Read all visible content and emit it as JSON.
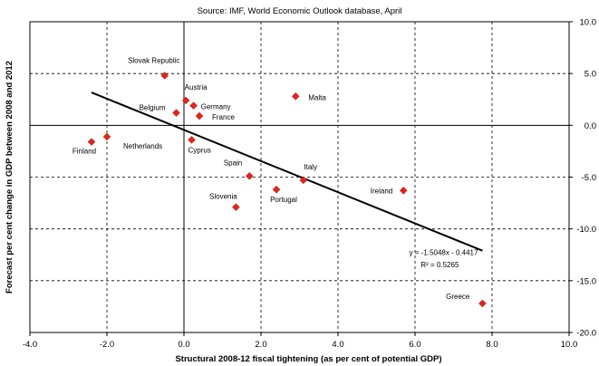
{
  "source": "Source: IMF, World Economic Outlook database, April",
  "chart_data": {
    "type": "scatter",
    "title": "",
    "xlabel": "Structural 2008-12 fiscal tightening (as per cent of potential GDP)",
    "ylabel": "Forecast per cent change in GDP between 2008 and 2012",
    "xlim": [
      -4.0,
      10.0
    ],
    "ylim": [
      -20.0,
      10.0
    ],
    "x_ticks": [
      "-4.0",
      "-2.0",
      "0.0",
      "2.0",
      "4.0",
      "6.0",
      "8.0",
      "10.0"
    ],
    "y_ticks": [
      "10.0",
      "5.0",
      "0.0",
      "-5.0",
      "-10.0",
      "-15.0",
      "-20.0"
    ],
    "grid": true,
    "points": [
      {
        "label": "Slovak Republic",
        "x": -0.5,
        "y": 4.8
      },
      {
        "label": "Austria",
        "x": 0.05,
        "y": 2.4
      },
      {
        "label": "Germany",
        "x": 0.25,
        "y": 1.9
      },
      {
        "label": "Belgium",
        "x": -0.2,
        "y": 1.2
      },
      {
        "label": "France",
        "x": 0.4,
        "y": 0.9
      },
      {
        "label": "Malta",
        "x": 2.9,
        "y": 2.8
      },
      {
        "label": "Netherlands",
        "x": -2.0,
        "y": -1.1
      },
      {
        "label": "Finland",
        "x": -2.4,
        "y": -1.6
      },
      {
        "label": "Cyprus",
        "x": 0.2,
        "y": -1.4
      },
      {
        "label": "Spain",
        "x": 1.7,
        "y": -4.9
      },
      {
        "label": "Italy",
        "x": 3.1,
        "y": -5.3
      },
      {
        "label": "Portugal",
        "x": 2.4,
        "y": -6.2
      },
      {
        "label": "Slovenia",
        "x": 1.35,
        "y": -7.9
      },
      {
        "label": "Ireland",
        "x": 5.7,
        "y": -6.3
      },
      {
        "label": "Greece",
        "x": 7.75,
        "y": -17.2
      }
    ],
    "trendline": {
      "slope": -1.5048,
      "intercept": -0.4417,
      "x_range": [
        -2.4,
        7.75
      ],
      "equation": "y = -1.5048x - 0.4417",
      "r2": "R² = 0.5265"
    },
    "colors": {
      "marker": "#e0251b",
      "line": "#000000"
    }
  }
}
